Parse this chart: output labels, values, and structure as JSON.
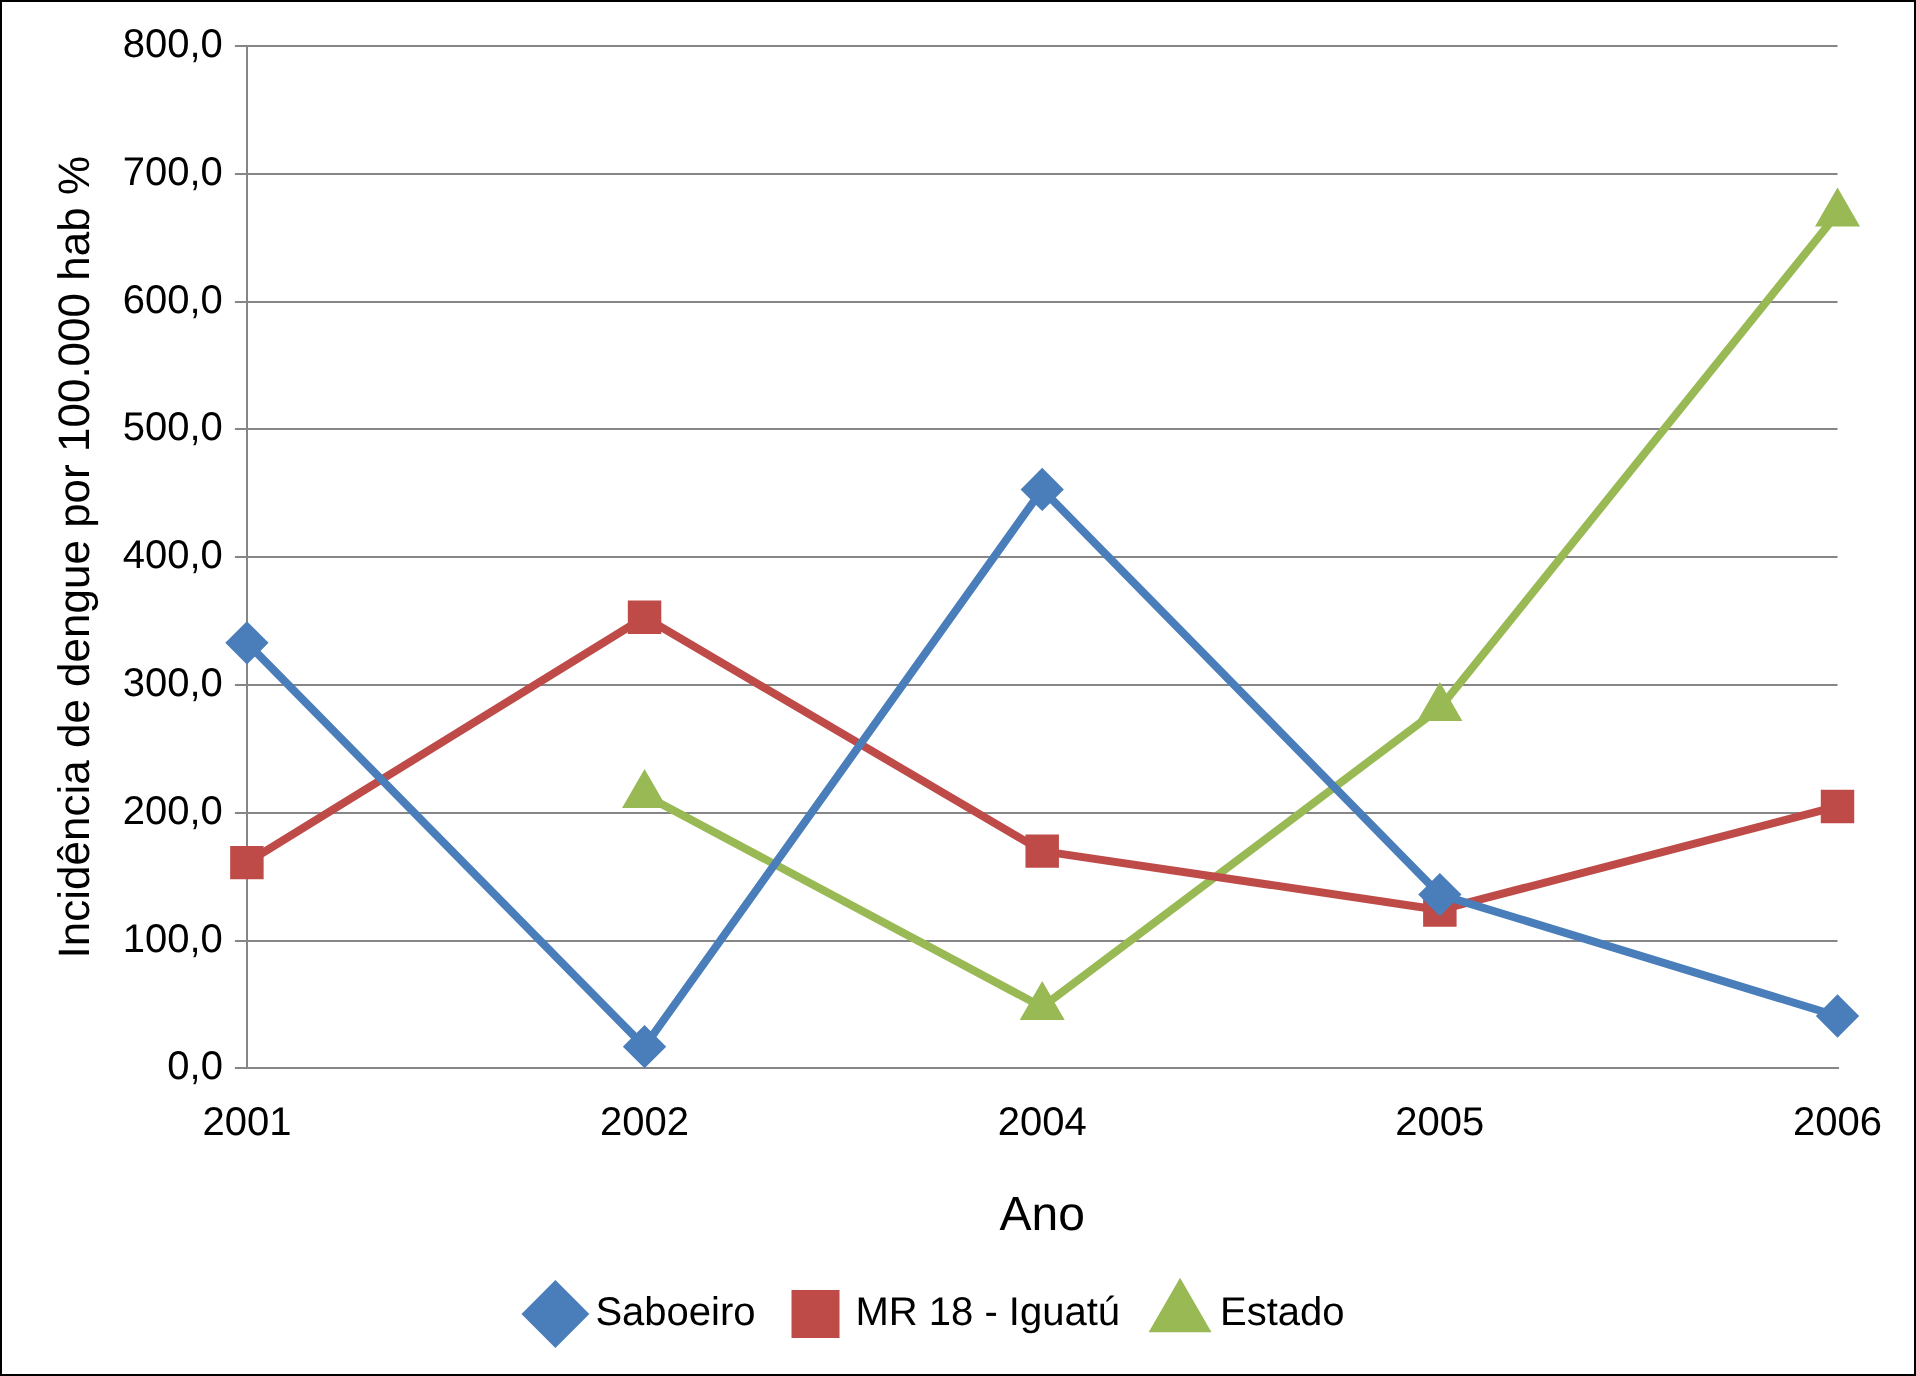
{
  "chart_data": {
    "type": "line",
    "xlabel": "Ano",
    "ylabel": "Incidência de dengue por 100.000 hab %",
    "categories": [
      "2001",
      "2002",
      "2004",
      "2005",
      "2006"
    ],
    "series": [
      {
        "name": "Saboeiro",
        "color": "#4a7ebb",
        "marker": "diamond",
        "values": [
          333,
          17,
          453,
          136,
          41
        ]
      },
      {
        "name": "MR 18 - Iguatú",
        "color": "#be4b48",
        "marker": "square",
        "values": [
          161,
          353,
          170,
          124,
          205
        ]
      },
      {
        "name": "Estado",
        "color": "#98b954",
        "marker": "triangle",
        "values": [
          null,
          214,
          48,
          282,
          669
        ]
      }
    ],
    "ylim": [
      0,
      800
    ],
    "yticks": [
      {
        "value": 0,
        "label": "0,0"
      },
      {
        "value": 100,
        "label": "100,0"
      },
      {
        "value": 200,
        "label": "200,0"
      },
      {
        "value": 300,
        "label": "300,0"
      },
      {
        "value": 400,
        "label": "400,0"
      },
      {
        "value": 500,
        "label": "500,0"
      },
      {
        "value": 600,
        "label": "600,0"
      },
      {
        "value": 700,
        "label": "700,0"
      },
      {
        "value": 800,
        "label": "800,0"
      }
    ],
    "grid": "y",
    "legend": "bottom",
    "line_style": "solid"
  }
}
